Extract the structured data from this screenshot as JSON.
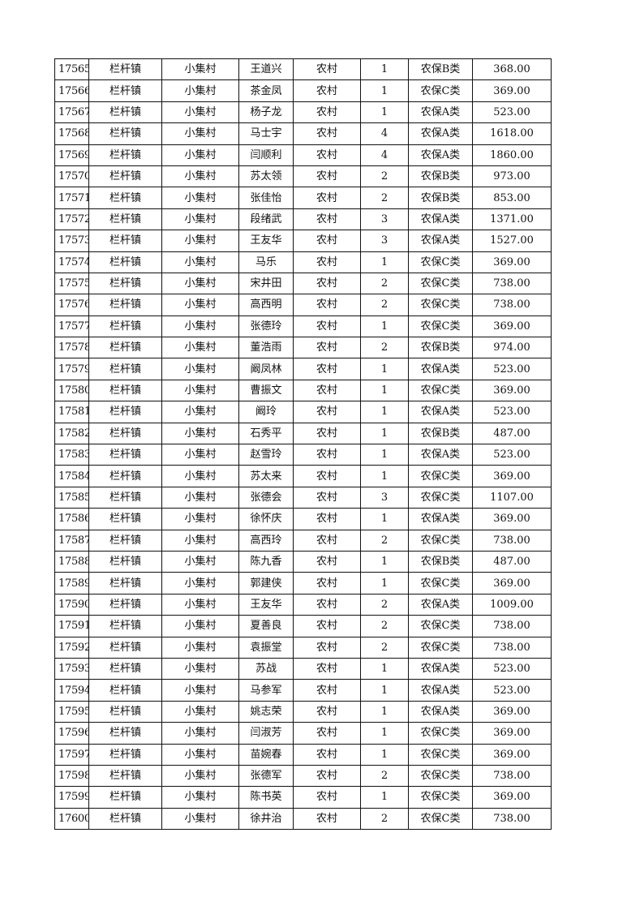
{
  "table": {
    "rows": [
      [
        "17565",
        "栏杆镇",
        "小集村",
        "王道兴",
        "农村",
        "1",
        "农保B类",
        "368.00"
      ],
      [
        "17566",
        "栏杆镇",
        "小集村",
        "茶金凤",
        "农村",
        "1",
        "农保C类",
        "369.00"
      ],
      [
        "17567",
        "栏杆镇",
        "小集村",
        "杨子龙",
        "农村",
        "1",
        "农保A类",
        "523.00"
      ],
      [
        "17568",
        "栏杆镇",
        "小集村",
        "马士宇",
        "农村",
        "4",
        "农保A类",
        "1618.00"
      ],
      [
        "17569",
        "栏杆镇",
        "小集村",
        "闫顺利",
        "农村",
        "4",
        "农保A类",
        "1860.00"
      ],
      [
        "17570",
        "栏杆镇",
        "小集村",
        "苏太领",
        "农村",
        "2",
        "农保B类",
        "973.00"
      ],
      [
        "17571",
        "栏杆镇",
        "小集村",
        "张佳怡",
        "农村",
        "2",
        "农保B类",
        "853.00"
      ],
      [
        "17572",
        "栏杆镇",
        "小集村",
        "段绪武",
        "农村",
        "3",
        "农保A类",
        "1371.00"
      ],
      [
        "17573",
        "栏杆镇",
        "小集村",
        "王友华",
        "农村",
        "3",
        "农保A类",
        "1527.00"
      ],
      [
        "17574",
        "栏杆镇",
        "小集村",
        "马乐",
        "农村",
        "1",
        "农保C类",
        "369.00"
      ],
      [
        "17575",
        "栏杆镇",
        "小集村",
        "宋井田",
        "农村",
        "2",
        "农保C类",
        "738.00"
      ],
      [
        "17576",
        "栏杆镇",
        "小集村",
        "高西明",
        "农村",
        "2",
        "农保C类",
        "738.00"
      ],
      [
        "17577",
        "栏杆镇",
        "小集村",
        "张德玲",
        "农村",
        "1",
        "农保C类",
        "369.00"
      ],
      [
        "17578",
        "栏杆镇",
        "小集村",
        "董浩雨",
        "农村",
        "2",
        "农保B类",
        "974.00"
      ],
      [
        "17579",
        "栏杆镇",
        "小集村",
        "阚凤林",
        "农村",
        "1",
        "农保A类",
        "523.00"
      ],
      [
        "17580",
        "栏杆镇",
        "小集村",
        "曹振文",
        "农村",
        "1",
        "农保C类",
        "369.00"
      ],
      [
        "17581",
        "栏杆镇",
        "小集村",
        "阚玲",
        "农村",
        "1",
        "农保A类",
        "523.00"
      ],
      [
        "17582",
        "栏杆镇",
        "小集村",
        "石秀平",
        "农村",
        "1",
        "农保B类",
        "487.00"
      ],
      [
        "17583",
        "栏杆镇",
        "小集村",
        "赵雪玲",
        "农村",
        "1",
        "农保A类",
        "523.00"
      ],
      [
        "17584",
        "栏杆镇",
        "小集村",
        "苏太来",
        "农村",
        "1",
        "农保C类",
        "369.00"
      ],
      [
        "17585",
        "栏杆镇",
        "小集村",
        "张德会",
        "农村",
        "3",
        "农保C类",
        "1107.00"
      ],
      [
        "17586",
        "栏杆镇",
        "小集村",
        "徐怀庆",
        "农村",
        "1",
        "农保A类",
        "369.00"
      ],
      [
        "17587",
        "栏杆镇",
        "小集村",
        "高西玲",
        "农村",
        "2",
        "农保C类",
        "738.00"
      ],
      [
        "17588",
        "栏杆镇",
        "小集村",
        "陈九香",
        "农村",
        "1",
        "农保B类",
        "487.00"
      ],
      [
        "17589",
        "栏杆镇",
        "小集村",
        "郭建侠",
        "农村",
        "1",
        "农保C类",
        "369.00"
      ],
      [
        "17590",
        "栏杆镇",
        "小集村",
        "王友华",
        "农村",
        "2",
        "农保A类",
        "1009.00"
      ],
      [
        "17591",
        "栏杆镇",
        "小集村",
        "夏善良",
        "农村",
        "2",
        "农保C类",
        "738.00"
      ],
      [
        "17592",
        "栏杆镇",
        "小集村",
        "袁振堂",
        "农村",
        "2",
        "农保C类",
        "738.00"
      ],
      [
        "17593",
        "栏杆镇",
        "小集村",
        "苏战",
        "农村",
        "1",
        "农保A类",
        "523.00"
      ],
      [
        "17594",
        "栏杆镇",
        "小集村",
        "马参军",
        "农村",
        "1",
        "农保A类",
        "523.00"
      ],
      [
        "17595",
        "栏杆镇",
        "小集村",
        "姚志荣",
        "农村",
        "1",
        "农保A类",
        "369.00"
      ],
      [
        "17596",
        "栏杆镇",
        "小集村",
        "闫淑芳",
        "农村",
        "1",
        "农保C类",
        "369.00"
      ],
      [
        "17597",
        "栏杆镇",
        "小集村",
        "苗婉春",
        "农村",
        "1",
        "农保C类",
        "369.00"
      ],
      [
        "17598",
        "栏杆镇",
        "小集村",
        "张德军",
        "农村",
        "2",
        "农保C类",
        "738.00"
      ],
      [
        "17599",
        "栏杆镇",
        "小集村",
        "陈书英",
        "农村",
        "1",
        "农保C类",
        "369.00"
      ],
      [
        "17600",
        "栏杆镇",
        "小集村",
        "徐井治",
        "农村",
        "2",
        "农保C类",
        "738.00"
      ]
    ]
  }
}
